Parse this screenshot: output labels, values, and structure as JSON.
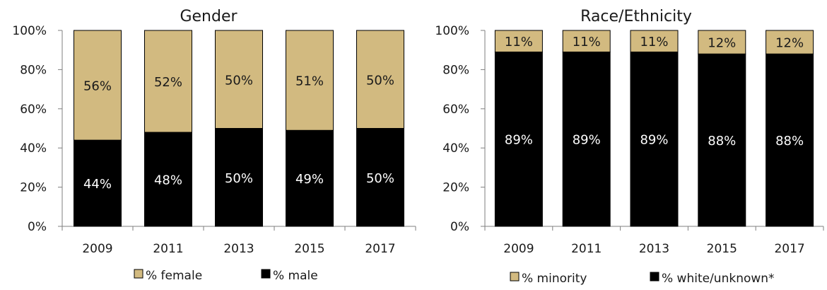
{
  "colors": {
    "female": "#D2BA80",
    "male": "#000000",
    "minority": "#D2BA80",
    "white": "#000000"
  },
  "chart_data": [
    {
      "type": "bar",
      "stacked": true,
      "title": "Gender",
      "categories": [
        "2009",
        "2011",
        "2013",
        "2015",
        "2017"
      ],
      "yticks": [
        "0%",
        "20%",
        "40%",
        "60%",
        "80%",
        "100%"
      ],
      "ylim": [
        0,
        100
      ],
      "series": [
        {
          "name": "% male",
          "values": [
            44,
            48,
            50,
            49,
            50
          ],
          "labels": [
            "44%",
            "48%",
            "50%",
            "49%",
            "50%"
          ]
        },
        {
          "name": "% female",
          "values": [
            56,
            52,
            50,
            51,
            50
          ],
          "labels": [
            "56%",
            "52%",
            "50%",
            "51%",
            "50%"
          ]
        }
      ],
      "legend": [
        "% female",
        "% male"
      ],
      "legend_position": "bottom"
    },
    {
      "type": "bar",
      "stacked": true,
      "title": "Race/Ethnicity",
      "categories": [
        "2009",
        "2011",
        "2013",
        "2015",
        "2017"
      ],
      "yticks": [
        "0%",
        "20%",
        "40%",
        "60%",
        "80%",
        "100%"
      ],
      "ylim": [
        0,
        100
      ],
      "series": [
        {
          "name": "% white/unknown*",
          "values": [
            89,
            89,
            89,
            88,
            88
          ],
          "labels": [
            "89%",
            "89%",
            "89%",
            "88%",
            "88%"
          ]
        },
        {
          "name": "% minority",
          "values": [
            11,
            11,
            11,
            12,
            12
          ],
          "labels": [
            "11%",
            "11%",
            "11%",
            "12%",
            "12%"
          ]
        }
      ],
      "legend": [
        "% minority",
        "% white/unknown*"
      ],
      "legend_position": "bottom"
    }
  ]
}
